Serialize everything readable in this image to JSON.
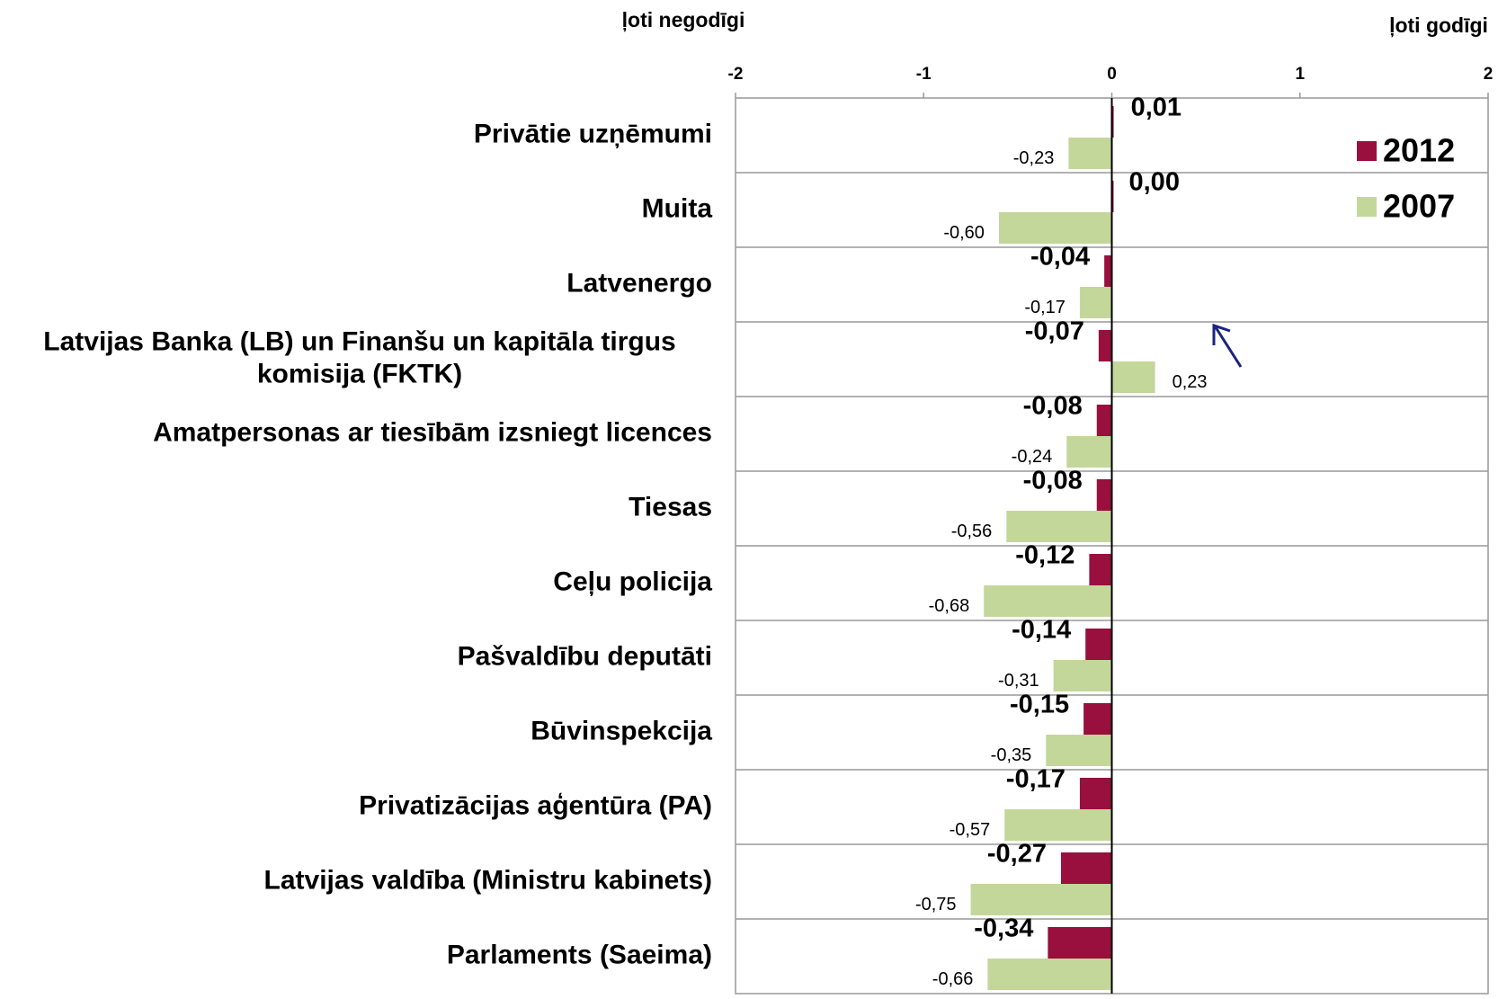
{
  "chart_data": {
    "type": "hbar",
    "annotations": [
      "ļoti negodīgi",
      "ļoti godīgi"
    ],
    "categories": [
      "Privātie uzņēmumi",
      "Muita",
      "Latvenergo",
      "Latvijas Banka (LB) un Finanšu un kapitāla tirgus komisija (FKTK)",
      "Amatpersonas ar tiesībām izsniegt licences",
      "Tiesas",
      "Ceļu policija",
      "Pašvaldību deputāti",
      "Būvinspekcija",
      "Privatizācijas aģentūra (PA)",
      "Latvijas valdība (Ministru kabinets)",
      "Parlaments (Saeima)"
    ],
    "series": [
      {
        "name": "2012",
        "color": "#990f3d",
        "values": [
          0.01,
          0.0,
          -0.04,
          -0.07,
          -0.08,
          -0.08,
          -0.12,
          -0.14,
          -0.15,
          -0.17,
          -0.27,
          -0.34
        ],
        "value_labels": [
          "0,01",
          "0,00",
          "-0,04",
          "-0,07",
          "-0,08",
          "-0,08",
          "-0,12",
          "-0,14",
          "-0,15",
          "-0,17",
          "-0,27",
          "-0,34"
        ]
      },
      {
        "name": "2007",
        "color": "#c4d79b",
        "values": [
          -0.23,
          -0.6,
          -0.17,
          0.23,
          -0.24,
          -0.56,
          -0.68,
          -0.31,
          -0.35,
          -0.57,
          -0.75,
          -0.66
        ],
        "value_labels": [
          "-0,23",
          "-0,60",
          "-0,17",
          "0,23",
          "-0,24",
          "-0,56",
          "-0,68",
          "-0,31",
          "-0,35",
          "-0,57",
          "-0,75",
          "-0,66"
        ]
      }
    ],
    "xlim": [
      -2,
      2
    ],
    "xticks": [
      -2,
      -1,
      0,
      1,
      2
    ],
    "legend": "upper right"
  }
}
